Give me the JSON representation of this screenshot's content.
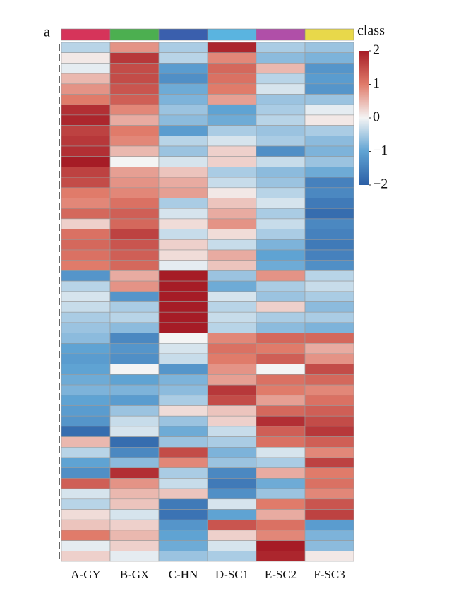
{
  "chart_data": {
    "type": "heatmap",
    "panel_label": "a",
    "legend_title": "class",
    "categories": [
      "A-GY",
      "B-GX",
      "C-HN",
      "D-SC1",
      "E-SC2",
      "F-SC3"
    ],
    "class_colors": [
      "#d6345a",
      "#4caf50",
      "#3a5fad",
      "#5ab4e0",
      "#b04fa8",
      "#e8d84a"
    ],
    "colorscale": [
      "#2c5fa6",
      "#5fa3d3",
      "#f4f4f4",
      "#e07b6a",
      "#a61c26"
    ],
    "zlim": [
      -2,
      2
    ],
    "zticks": [
      2,
      1,
      0,
      {
        "value": -1,
        "label": "−1"
      },
      {
        "value": -2,
        "label": "−2"
      }
    ],
    "values": [
      [
        -0.4,
        0.8,
        -0.5,
        1.9,
        -0.5,
        -0.6
      ],
      [
        0.1,
        1.7,
        -0.4,
        0.9,
        -0.7,
        -0.8
      ],
      [
        -0.1,
        1.5,
        -1.1,
        1.2,
        0.5,
        -1.2
      ],
      [
        0.5,
        1.5,
        -1.3,
        1.1,
        -0.4,
        -1.1
      ],
      [
        0.8,
        1.4,
        -0.9,
        1.0,
        -0.2,
        -1.2
      ],
      [
        1.0,
        1.3,
        -0.8,
        0.7,
        -0.6,
        -0.6
      ],
      [
        1.8,
        0.9,
        -0.6,
        -1.0,
        -0.5,
        -0.1
      ],
      [
        1.9,
        0.6,
        -0.7,
        -0.9,
        -0.4,
        0.1
      ],
      [
        1.6,
        1.0,
        -1.1,
        -0.5,
        -0.6,
        -0.5
      ],
      [
        1.7,
        0.9,
        -0.4,
        -0.2,
        -0.5,
        -0.7
      ],
      [
        1.8,
        0.5,
        -0.6,
        0.3,
        -1.3,
        -0.8
      ],
      [
        2.0,
        0.0,
        -0.2,
        0.3,
        -0.3,
        -0.6
      ],
      [
        1.6,
        0.7,
        0.4,
        -0.5,
        -0.7,
        -0.9
      ],
      [
        1.5,
        0.8,
        0.6,
        -0.3,
        -0.6,
        -1.5
      ],
      [
        1.0,
        0.9,
        0.7,
        0.1,
        -0.4,
        -1.4
      ],
      [
        0.9,
        1.1,
        -0.5,
        0.4,
        -0.2,
        -1.6
      ],
      [
        1.2,
        1.3,
        -0.2,
        0.6,
        -0.5,
        -1.8
      ],
      [
        0.3,
        1.2,
        0.2,
        0.8,
        -0.3,
        -1.4
      ],
      [
        1.1,
        1.6,
        -0.3,
        0.2,
        -0.5,
        -1.5
      ],
      [
        1.2,
        1.4,
        0.3,
        -0.3,
        -0.8,
        -1.6
      ],
      [
        1.1,
        1.3,
        0.2,
        0.6,
        -1.0,
        -1.5
      ],
      [
        1.0,
        1.2,
        -0.1,
        0.4,
        -0.9,
        -1.3
      ],
      [
        -1.2,
        0.6,
        2.0,
        -0.6,
        0.8,
        -0.4
      ],
      [
        -0.4,
        0.8,
        2.0,
        -0.9,
        -0.5,
        -0.3
      ],
      [
        -0.2,
        -1.2,
        2.0,
        -0.2,
        -0.6,
        -0.5
      ],
      [
        -0.3,
        -0.5,
        2.0,
        -0.4,
        0.3,
        -0.7
      ],
      [
        -0.5,
        -0.4,
        2.0,
        -0.3,
        -0.5,
        -0.5
      ],
      [
        -0.6,
        -0.7,
        2.1,
        -0.4,
        -0.7,
        -0.8
      ],
      [
        -0.7,
        -1.4,
        0.0,
        0.9,
        1.2,
        1.2
      ],
      [
        -1.0,
        -1.2,
        -0.2,
        1.1,
        1.0,
        0.6
      ],
      [
        -1.1,
        -1.3,
        -0.3,
        1.0,
        1.3,
        0.8
      ],
      [
        -1.0,
        0.0,
        -1.2,
        0.8,
        0.0,
        1.5
      ],
      [
        -0.9,
        -1.0,
        -0.8,
        0.7,
        1.1,
        1.2
      ],
      [
        -0.8,
        -0.8,
        -0.7,
        1.7,
        1.0,
        0.9
      ],
      [
        -1.0,
        -1.1,
        -0.5,
        1.5,
        0.7,
        1.1
      ],
      [
        -1.1,
        -0.6,
        0.2,
        0.4,
        1.2,
        1.3
      ],
      [
        -1.2,
        -0.3,
        -0.6,
        0.3,
        1.8,
        1.5
      ],
      [
        -1.8,
        -0.2,
        -0.9,
        -0.3,
        1.3,
        1.7
      ],
      [
        0.5,
        -1.8,
        -0.6,
        -0.5,
        1.1,
        1.3
      ],
      [
        -0.4,
        -1.4,
        1.5,
        -0.8,
        -0.2,
        0.9
      ],
      [
        -1.0,
        -0.7,
        0.9,
        -0.6,
        -0.5,
        1.6
      ],
      [
        -1.3,
        1.8,
        -0.5,
        -1.4,
        0.6,
        1.0
      ],
      [
        1.3,
        0.8,
        -0.3,
        -1.6,
        -0.9,
        1.1
      ],
      [
        -0.2,
        0.5,
        0.4,
        -1.3,
        -0.6,
        0.9
      ],
      [
        -0.4,
        0.4,
        -1.6,
        -0.2,
        1.0,
        1.4
      ],
      [
        0.2,
        -0.2,
        -1.7,
        -1.0,
        0.6,
        1.6
      ],
      [
        0.4,
        0.3,
        -1.2,
        1.4,
        1.1,
        -1.1
      ],
      [
        1.0,
        0.5,
        -1.0,
        0.3,
        0.9,
        -0.8
      ],
      [
        -0.1,
        0.3,
        -0.9,
        -0.2,
        2.0,
        -0.7
      ],
      [
        0.3,
        -0.1,
        -0.6,
        -0.5,
        1.9,
        0.1
      ]
    ]
  }
}
